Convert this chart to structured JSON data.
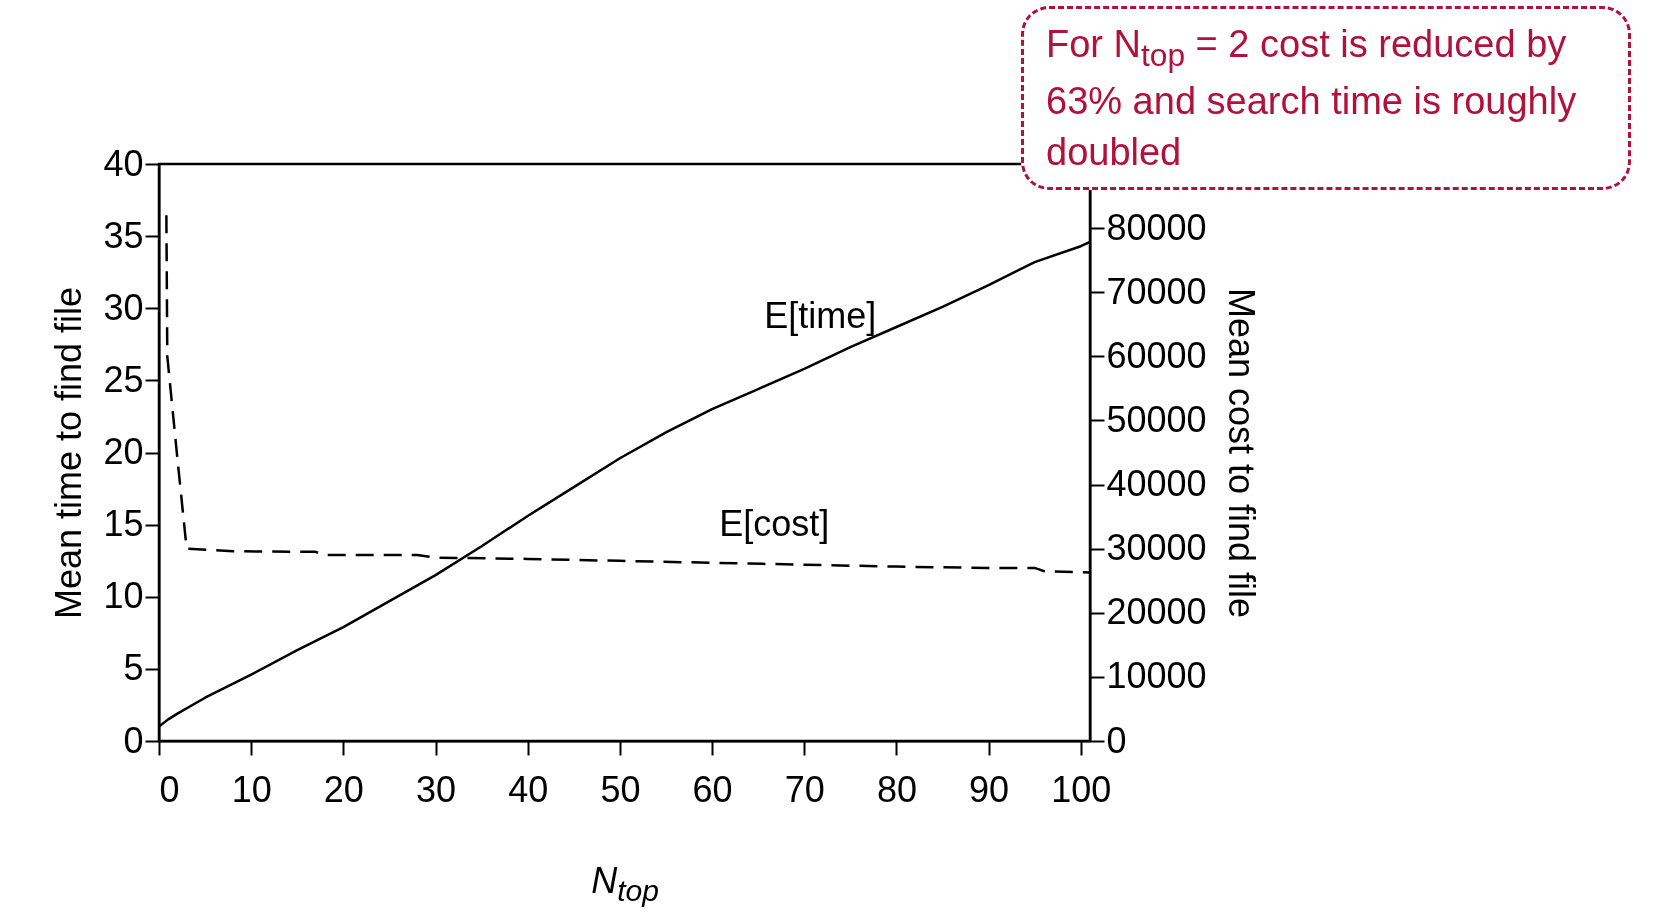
{
  "chart_data": {
    "type": "line",
    "xlabel": "N$_{top}$",
    "ylabel": "Mean time to find file",
    "y2label": "Mean cost to find file",
    "xlim": [
      0,
      101
    ],
    "xticks": [
      0,
      10,
      20,
      30,
      40,
      50,
      60,
      70,
      80,
      90,
      100
    ],
    "ylim": [
      0,
      40
    ],
    "yticks": [
      0,
      5,
      10,
      15,
      20,
      25,
      30,
      35,
      40
    ],
    "y2lim": [
      0,
      90000
    ],
    "y2ticks": [
      0,
      10000,
      20000,
      30000,
      40000,
      50000,
      60000,
      70000,
      80000
    ],
    "grid": false,
    "marker": "none",
    "series": [
      {
        "name": "E[time]",
        "color": "#000000",
        "line_style": "solid",
        "x": [
          0,
          1,
          2,
          5,
          10,
          15,
          20,
          25,
          30,
          35,
          40,
          45,
          50,
          55,
          60,
          65,
          70,
          75,
          80,
          85,
          90,
          95,
          100,
          101
        ],
        "values": [
          1.0,
          1.5,
          1.9,
          3.0,
          4.6,
          6.3,
          7.9,
          9.7,
          11.5,
          13.5,
          15.6,
          17.6,
          19.6,
          21.4,
          23.0,
          24.4,
          25.8,
          27.3,
          28.7,
          30.1,
          31.6,
          33.2,
          34.3,
          34.6
        ]
      },
      {
        "name": "E[cost]",
        "color": "#000000",
        "line_style": "dashed",
        "axis": "y2",
        "x": [
          0.8,
          0.9,
          2.0,
          3.0,
          8,
          17,
          18,
          28,
          30,
          40,
          50,
          60,
          70,
          80,
          90,
          95,
          96,
          101
        ],
        "values": [
          82000,
          60000,
          44000,
          30000,
          29600,
          29500,
          29000,
          29000,
          28600,
          28400,
          28100,
          27800,
          27500,
          27200,
          27000,
          27000,
          26500,
          26300
        ]
      }
    ],
    "annotations": [
      "For N$_{top}$ = 2 cost is reduced by 63% and search time is roughly doubled"
    ]
  }
}
